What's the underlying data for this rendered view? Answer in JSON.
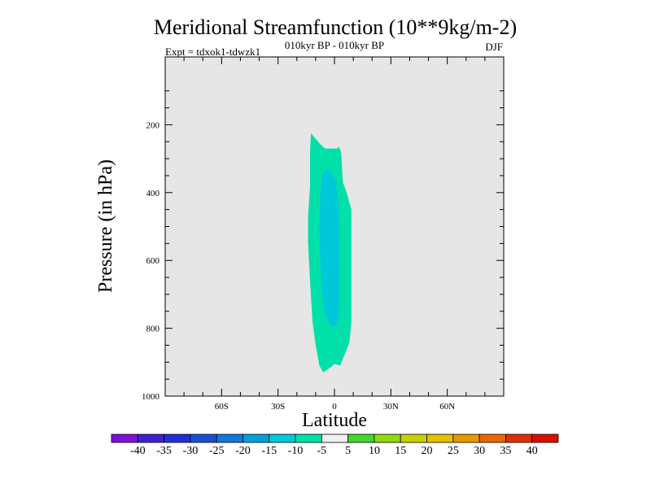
{
  "chart_data": {
    "type": "contour",
    "title": "Meridional Streamfunction (10**9kg/m-2)",
    "experiment": "Expt = tdxok1-tdwzk1",
    "period": "010kyr BP - 010kyr BP",
    "season": "DJF",
    "xlabel": "Latitude",
    "ylabel": "Pressure (in hPa)",
    "xlim": [
      -90,
      90
    ],
    "ylim": [
      1000,
      0
    ],
    "x_ticks": [
      {
        "value": -60,
        "label": "60S"
      },
      {
        "value": -30,
        "label": "30S"
      },
      {
        "value": 0,
        "label": "0"
      },
      {
        "value": 30,
        "label": "30N"
      },
      {
        "value": 60,
        "label": "60N"
      }
    ],
    "y_ticks": [
      {
        "value": 200,
        "label": "200"
      },
      {
        "value": 400,
        "label": "400"
      },
      {
        "value": 600,
        "label": "600"
      },
      {
        "value": 800,
        "label": "800"
      },
      {
        "value": 1000,
        "label": "1000"
      }
    ],
    "background_color": "#e6e6e6",
    "regions": [
      {
        "name": "-10 to -5 band",
        "color": "#00e0a8",
        "points": [
          [
            -12.5,
            225
          ],
          [
            -8,
            255
          ],
          [
            -5,
            270
          ],
          [
            1.5,
            270
          ],
          [
            2.5,
            265
          ],
          [
            3.5,
            280
          ],
          [
            4.5,
            370
          ],
          [
            6.5,
            400
          ],
          [
            9,
            450
          ],
          [
            9,
            780
          ],
          [
            8,
            840
          ],
          [
            6,
            870
          ],
          [
            3,
            910
          ],
          [
            0,
            905
          ],
          [
            -2,
            915
          ],
          [
            -6,
            930
          ],
          [
            -8,
            910
          ],
          [
            -10,
            850
          ],
          [
            -11.7,
            780
          ],
          [
            -13,
            660
          ],
          [
            -14,
            550
          ],
          [
            -14,
            470
          ],
          [
            -13,
            380
          ],
          [
            -13,
            280
          ],
          [
            -12.5,
            225
          ]
        ]
      },
      {
        "name": "-15 to -10 band",
        "color": "#00c8d8",
        "points": [
          [
            -4.5,
            330
          ],
          [
            -2,
            340
          ],
          [
            1,
            370
          ],
          [
            2,
            430
          ],
          [
            2.5,
            520
          ],
          [
            2.5,
            760
          ],
          [
            1,
            795
          ],
          [
            -2,
            795
          ],
          [
            -5,
            760
          ],
          [
            -6.5,
            700
          ],
          [
            -7.5,
            600
          ],
          [
            -8,
            500
          ],
          [
            -7.5,
            400
          ],
          [
            -6.5,
            350
          ],
          [
            -4.5,
            330
          ]
        ]
      }
    ],
    "colorbar": {
      "labels": [
        "-40",
        "-35",
        "-30",
        "-25",
        "-20",
        "-15",
        "-10",
        "-5",
        "5",
        "10",
        "15",
        "20",
        "25",
        "30",
        "35",
        "40"
      ],
      "colors": [
        "#8010d8",
        "#4020d0",
        "#2030d8",
        "#1850d0",
        "#1078e0",
        "#00a0e0",
        "#00c8d8",
        "#00e0a8",
        "#f0f0f0",
        "#40d828",
        "#90d810",
        "#c8d000",
        "#e8c000",
        "#e89800",
        "#e86800",
        "#e03000",
        "#d81000"
      ]
    }
  }
}
